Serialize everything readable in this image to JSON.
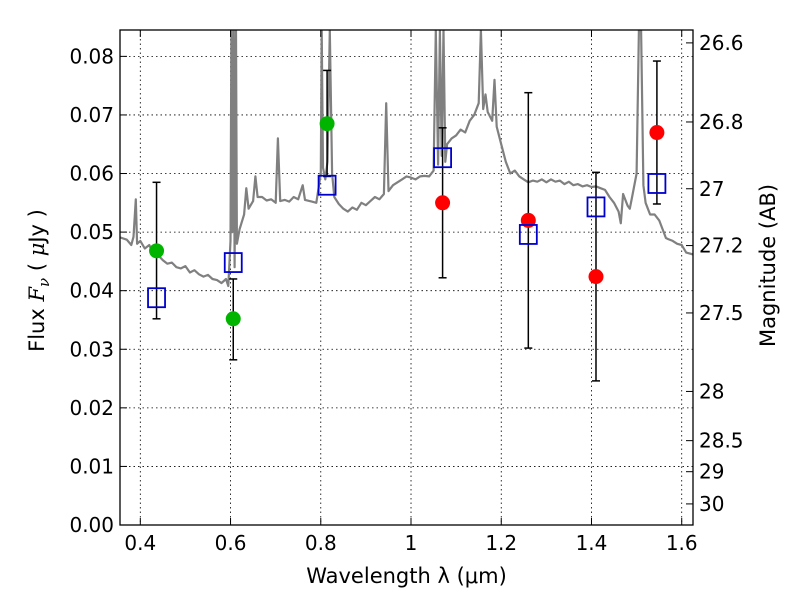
{
  "chart_data": {
    "type": "scatter",
    "xlabel": "Wavelength  λ (μm)",
    "ylabel_parts": [
      "Flux  ",
      "F",
      "ν",
      "  (  ",
      "μ",
      "Jy  )"
    ],
    "right_ylabel": "Magnitude (AB)",
    "xlim": [
      0.355,
      1.625
    ],
    "ylim": [
      0.0,
      0.0845
    ],
    "x_ticks": [
      0.4,
      0.6,
      0.8,
      1.0,
      1.2,
      1.4,
      1.6
    ],
    "x_tick_labels": [
      "0.4",
      "0.6",
      "0.8",
      "1",
      "1.2",
      "1.4",
      "1.6"
    ],
    "y_ticks": [
      0.0,
      0.01,
      0.02,
      0.03,
      0.04,
      0.05,
      0.06,
      0.07,
      0.08
    ],
    "y_tick_labels": [
      "0.00",
      "0.01",
      "0.02",
      "0.03",
      "0.04",
      "0.05",
      "0.06",
      "0.07",
      "0.08"
    ],
    "right_ticks": [
      {
        "label": "26.6",
        "flux": 0.0823
      },
      {
        "label": "26.8",
        "flux": 0.0688
      },
      {
        "label": "27",
        "flux": 0.0574
      },
      {
        "label": "27.2",
        "flux": 0.0477
      },
      {
        "label": "27.5",
        "flux": 0.0362
      },
      {
        "label": "28",
        "flux": 0.0228
      },
      {
        "label": "28.5",
        "flux": 0.0144
      },
      {
        "label": "29",
        "flux": 0.0091
      },
      {
        "label": "30",
        "flux": 0.0036
      }
    ],
    "grid": true,
    "series": [
      {
        "marker": "circle",
        "color": "#00b400",
        "points": [
          {
            "x": 0.436,
            "y": 0.0468,
            "err_low": 0.0352,
            "err_high": 0.0585
          },
          {
            "x": 0.606,
            "y": 0.0352,
            "err_low": 0.0282,
            "err_high": 0.042
          },
          {
            "x": 0.814,
            "y": 0.0685,
            "err_low": 0.0595,
            "err_high": 0.0776
          }
        ]
      },
      {
        "marker": "circle",
        "color": "#ff0000",
        "points": [
          {
            "x": 1.07,
            "y": 0.055,
            "err_low": 0.0422,
            "err_high": 0.0678
          },
          {
            "x": 1.26,
            "y": 0.052,
            "err_low": 0.0302,
            "err_high": 0.0738
          },
          {
            "x": 1.41,
            "y": 0.0424,
            "err_low": 0.0246,
            "err_high": 0.0602
          },
          {
            "x": 1.545,
            "y": 0.067,
            "err_low": 0.0548,
            "err_high": 0.0792
          }
        ]
      },
      {
        "marker": "open-square",
        "color": "#0000cc",
        "points": [
          {
            "x": 0.436,
            "y": 0.0388
          },
          {
            "x": 0.606,
            "y": 0.0448
          },
          {
            "x": 0.814,
            "y": 0.058
          },
          {
            "x": 1.07,
            "y": 0.0627
          },
          {
            "x": 1.26,
            "y": 0.0496
          },
          {
            "x": 1.41,
            "y": 0.0543
          },
          {
            "x": 1.545,
            "y": 0.0583
          }
        ]
      }
    ],
    "spectrum": {
      "color": "#808080",
      "points": [
        [
          0.355,
          0.0491
        ],
        [
          0.37,
          0.0487
        ],
        [
          0.38,
          0.0478
        ],
        [
          0.385,
          0.0492
        ],
        [
          0.39,
          0.0556
        ],
        [
          0.393,
          0.048
        ],
        [
          0.4,
          0.0485
        ],
        [
          0.41,
          0.0472
        ],
        [
          0.42,
          0.0478
        ],
        [
          0.43,
          0.0461
        ],
        [
          0.44,
          0.046
        ],
        [
          0.45,
          0.0452
        ],
        [
          0.46,
          0.0446
        ],
        [
          0.47,
          0.0448
        ],
        [
          0.48,
          0.044
        ],
        [
          0.49,
          0.0438
        ],
        [
          0.5,
          0.0442
        ],
        [
          0.51,
          0.0431
        ],
        [
          0.52,
          0.0435
        ],
        [
          0.53,
          0.0428
        ],
        [
          0.54,
          0.0424
        ],
        [
          0.55,
          0.0427
        ],
        [
          0.56,
          0.042
        ],
        [
          0.57,
          0.0418
        ],
        [
          0.58,
          0.0413
        ],
        [
          0.59,
          0.042
        ],
        [
          0.595,
          0.0408
        ],
        [
          0.6,
          0.0485
        ],
        [
          0.602,
          0.0845
        ],
        [
          0.604,
          0.05
        ],
        [
          0.607,
          0.0845
        ],
        [
          0.609,
          0.044
        ],
        [
          0.612,
          0.0845
        ],
        [
          0.614,
          0.048
        ],
        [
          0.62,
          0.0505
        ],
        [
          0.63,
          0.053
        ],
        [
          0.635,
          0.0575
        ],
        [
          0.64,
          0.054
        ],
        [
          0.65,
          0.0553
        ],
        [
          0.655,
          0.0595
        ],
        [
          0.66,
          0.056
        ],
        [
          0.67,
          0.056
        ],
        [
          0.68,
          0.0554
        ],
        [
          0.69,
          0.0556
        ],
        [
          0.7,
          0.055
        ],
        [
          0.705,
          0.066
        ],
        [
          0.71,
          0.0553
        ],
        [
          0.72,
          0.0555
        ],
        [
          0.73,
          0.0552
        ],
        [
          0.74,
          0.056
        ],
        [
          0.75,
          0.0556
        ],
        [
          0.76,
          0.058
        ],
        [
          0.765,
          0.0555
        ],
        [
          0.78,
          0.0552
        ],
        [
          0.79,
          0.055
        ],
        [
          0.8,
          0.06
        ],
        [
          0.802,
          0.0845
        ],
        [
          0.805,
          0.061
        ],
        [
          0.81,
          0.059
        ],
        [
          0.815,
          0.062
        ],
        [
          0.82,
          0.0845
        ],
        [
          0.825,
          0.06
        ],
        [
          0.83,
          0.056
        ],
        [
          0.84,
          0.0548
        ],
        [
          0.85,
          0.054
        ],
        [
          0.86,
          0.0535
        ],
        [
          0.87,
          0.0542
        ],
        [
          0.88,
          0.0538
        ],
        [
          0.89,
          0.055
        ],
        [
          0.9,
          0.0546
        ],
        [
          0.91,
          0.0553
        ],
        [
          0.92,
          0.056
        ],
        [
          0.93,
          0.0556
        ],
        [
          0.94,
          0.0565
        ],
        [
          0.945,
          0.072
        ],
        [
          0.95,
          0.057
        ],
        [
          0.96,
          0.058
        ],
        [
          0.97,
          0.0585
        ],
        [
          0.98,
          0.059
        ],
        [
          0.99,
          0.0595
        ],
        [
          1.0,
          0.0593
        ],
        [
          1.01,
          0.059
        ],
        [
          1.02,
          0.0595
        ],
        [
          1.03,
          0.0596
        ],
        [
          1.04,
          0.0595
        ],
        [
          1.05,
          0.0605
        ],
        [
          1.055,
          0.0845
        ],
        [
          1.06,
          0.0615
        ],
        [
          1.064,
          0.0845
        ],
        [
          1.068,
          0.063
        ],
        [
          1.072,
          0.0845
        ],
        [
          1.076,
          0.062
        ],
        [
          1.08,
          0.065
        ],
        [
          1.09,
          0.066
        ],
        [
          1.1,
          0.0665
        ],
        [
          1.11,
          0.0675
        ],
        [
          1.12,
          0.067
        ],
        [
          1.13,
          0.069
        ],
        [
          1.14,
          0.07
        ],
        [
          1.15,
          0.072
        ],
        [
          1.155,
          0.0845
        ],
        [
          1.16,
          0.071
        ],
        [
          1.165,
          0.0735
        ],
        [
          1.17,
          0.0705
        ],
        [
          1.18,
          0.069
        ],
        [
          1.185,
          0.076
        ],
        [
          1.19,
          0.068
        ],
        [
          1.2,
          0.065
        ],
        [
          1.21,
          0.062
        ],
        [
          1.22,
          0.06
        ],
        [
          1.23,
          0.0605
        ],
        [
          1.24,
          0.0595
        ],
        [
          1.25,
          0.059
        ],
        [
          1.26,
          0.0585
        ],
        [
          1.27,
          0.0588
        ],
        [
          1.28,
          0.0586
        ],
        [
          1.29,
          0.059
        ],
        [
          1.3,
          0.0585
        ],
        [
          1.31,
          0.059
        ],
        [
          1.32,
          0.0586
        ],
        [
          1.33,
          0.0588
        ],
        [
          1.34,
          0.0582
        ],
        [
          1.35,
          0.0586
        ],
        [
          1.36,
          0.058
        ],
        [
          1.37,
          0.0582
        ],
        [
          1.38,
          0.0578
        ],
        [
          1.39,
          0.058
        ],
        [
          1.4,
          0.0577
        ],
        [
          1.41,
          0.0578
        ],
        [
          1.42,
          0.0575
        ],
        [
          1.43,
          0.0572
        ],
        [
          1.44,
          0.056
        ],
        [
          1.45,
          0.055
        ],
        [
          1.46,
          0.0535
        ],
        [
          1.465,
          0.0515
        ],
        [
          1.47,
          0.0565
        ],
        [
          1.48,
          0.0545
        ],
        [
          1.485,
          0.054
        ],
        [
          1.49,
          0.056
        ],
        [
          1.5,
          0.06
        ],
        [
          1.505,
          0.0845
        ],
        [
          1.51,
          0.0845
        ],
        [
          1.515,
          0.058
        ],
        [
          1.52,
          0.055
        ],
        [
          1.53,
          0.053
        ],
        [
          1.54,
          0.053
        ],
        [
          1.55,
          0.052
        ],
        [
          1.56,
          0.05
        ],
        [
          1.565,
          0.049
        ],
        [
          1.57,
          0.0488
        ],
        [
          1.58,
          0.0485
        ],
        [
          1.59,
          0.048
        ],
        [
          1.6,
          0.0478
        ],
        [
          1.61,
          0.0465
        ],
        [
          1.625,
          0.0462
        ]
      ]
    }
  }
}
